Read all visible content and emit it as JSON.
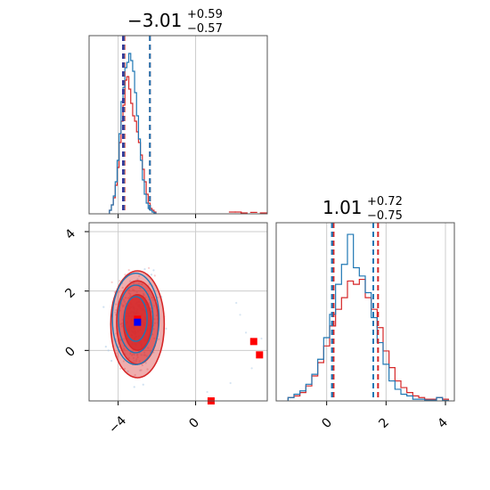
{
  "colors": {
    "blue": "#1f77b4",
    "red": "#d62728",
    "grid": "#cccccc",
    "axis": "#555555",
    "marker_blue": "#0000ff",
    "marker_red": "#ff0000"
  },
  "chart_data": [
    {
      "type": "histogram",
      "panel": "top-left",
      "title": {
        "value": "−3.01",
        "plus": "+0.59",
        "minus": "−0.57"
      },
      "xlim": [
        -5.5,
        3.7
      ],
      "x_grid": [
        -4,
        0
      ],
      "bins_x": [
        -4.4,
        -4.3,
        -4.2,
        -4.1,
        -4.0,
        -3.9,
        -3.8,
        -3.7,
        -3.6,
        -3.5,
        -3.4,
        -3.3,
        -3.2,
        -3.1,
        -3.0,
        -2.9,
        -2.8,
        -2.7,
        -2.6,
        -2.5,
        -2.4,
        -2.3,
        -2.2,
        -2.1
      ],
      "series": [
        {
          "color_key": "blue",
          "values": [
            0.02,
            0.05,
            0.1,
            0.18,
            0.3,
            0.45,
            0.63,
            0.71,
            0.82,
            0.85,
            0.9,
            0.86,
            0.8,
            0.68,
            0.55,
            0.42,
            0.3,
            0.19,
            0.11,
            0.06,
            0.03,
            0.02,
            0.01,
            0.005
          ]
        },
        {
          "color_key": "red",
          "values": [
            0.02,
            0.05,
            0.09,
            0.16,
            0.26,
            0.4,
            0.52,
            0.61,
            0.75,
            0.77,
            0.7,
            0.62,
            0.55,
            0.52,
            0.46,
            0.4,
            0.33,
            0.25,
            0.18,
            0.11,
            0.06,
            0.03,
            0.02,
            0.01
          ]
        }
      ],
      "tail_red": [
        [
          1.9,
          0.01
        ],
        [
          2.2,
          0.01
        ],
        [
          2.5,
          0.005
        ],
        [
          3.0,
          0.008
        ],
        [
          3.5,
          0.005
        ]
      ],
      "lines": {
        "blue": [
          -3.72,
          -2.36,
          -3.72
        ],
        "red": [
          -3.68,
          -2.36,
          -3.68
        ],
        "blue_dark": [
          -3.75
        ]
      }
    },
    {
      "type": "scatter",
      "panel": "bottom-left",
      "xlim": [
        -5.5,
        3.7
      ],
      "ylim": [
        -1.7,
        4.3
      ],
      "x_grid": [
        -4,
        0
      ],
      "y_grid": [
        0,
        2,
        4
      ],
      "contour_center": [
        -3.0,
        1.0
      ],
      "markers": {
        "blue": [
          [
            -3.0,
            0.95
          ]
        ],
        "red": [
          [
            -3.0,
            1.05
          ],
          [
            3.0,
            0.3
          ],
          [
            3.3,
            -0.15
          ],
          [
            0.8,
            -1.7
          ]
        ]
      },
      "x_ticks": [
        "−4",
        "0"
      ],
      "y_ticks": [
        "0",
        "2",
        "4"
      ]
    },
    {
      "type": "histogram",
      "panel": "bottom-right",
      "title": {
        "value": "1.01",
        "plus": "+0.72",
        "minus": "−0.75"
      },
      "xlim": [
        -1.7,
        4.3
      ],
      "x_grid": [
        0,
        2,
        4
      ],
      "bins_x": [
        -1.2,
        -1.0,
        -0.8,
        -0.6,
        -0.4,
        -0.2,
        0.0,
        0.2,
        0.4,
        0.6,
        0.8,
        1.0,
        1.2,
        1.4,
        1.6,
        1.8,
        2.0,
        2.2,
        2.4,
        2.6,
        2.8,
        3.0,
        3.2,
        3.4,
        3.6,
        3.8,
        4.0
      ],
      "series": [
        {
          "color_key": "blue",
          "values": [
            0.02,
            0.04,
            0.06,
            0.1,
            0.16,
            0.25,
            0.38,
            0.52,
            0.7,
            0.82,
            1.0,
            0.8,
            0.75,
            0.65,
            0.5,
            0.35,
            0.22,
            0.12,
            0.07,
            0.04,
            0.03,
            0.01,
            0.01,
            0.005,
            0.005,
            0.02,
            0.003
          ]
        },
        {
          "color_key": "red",
          "values": [
            0.02,
            0.03,
            0.05,
            0.09,
            0.15,
            0.23,
            0.33,
            0.45,
            0.55,
            0.62,
            0.72,
            0.7,
            0.73,
            0.62,
            0.55,
            0.44,
            0.3,
            0.2,
            0.12,
            0.08,
            0.05,
            0.03,
            0.02,
            0.01,
            0.01,
            0.02,
            0.01
          ]
        }
      ],
      "lines": {
        "blue": [
          0.18,
          1.57,
          0.18
        ],
        "red": [
          0.23,
          1.73,
          0.23
        ]
      },
      "x_ticks": [
        "0",
        "2",
        "4"
      ]
    }
  ]
}
